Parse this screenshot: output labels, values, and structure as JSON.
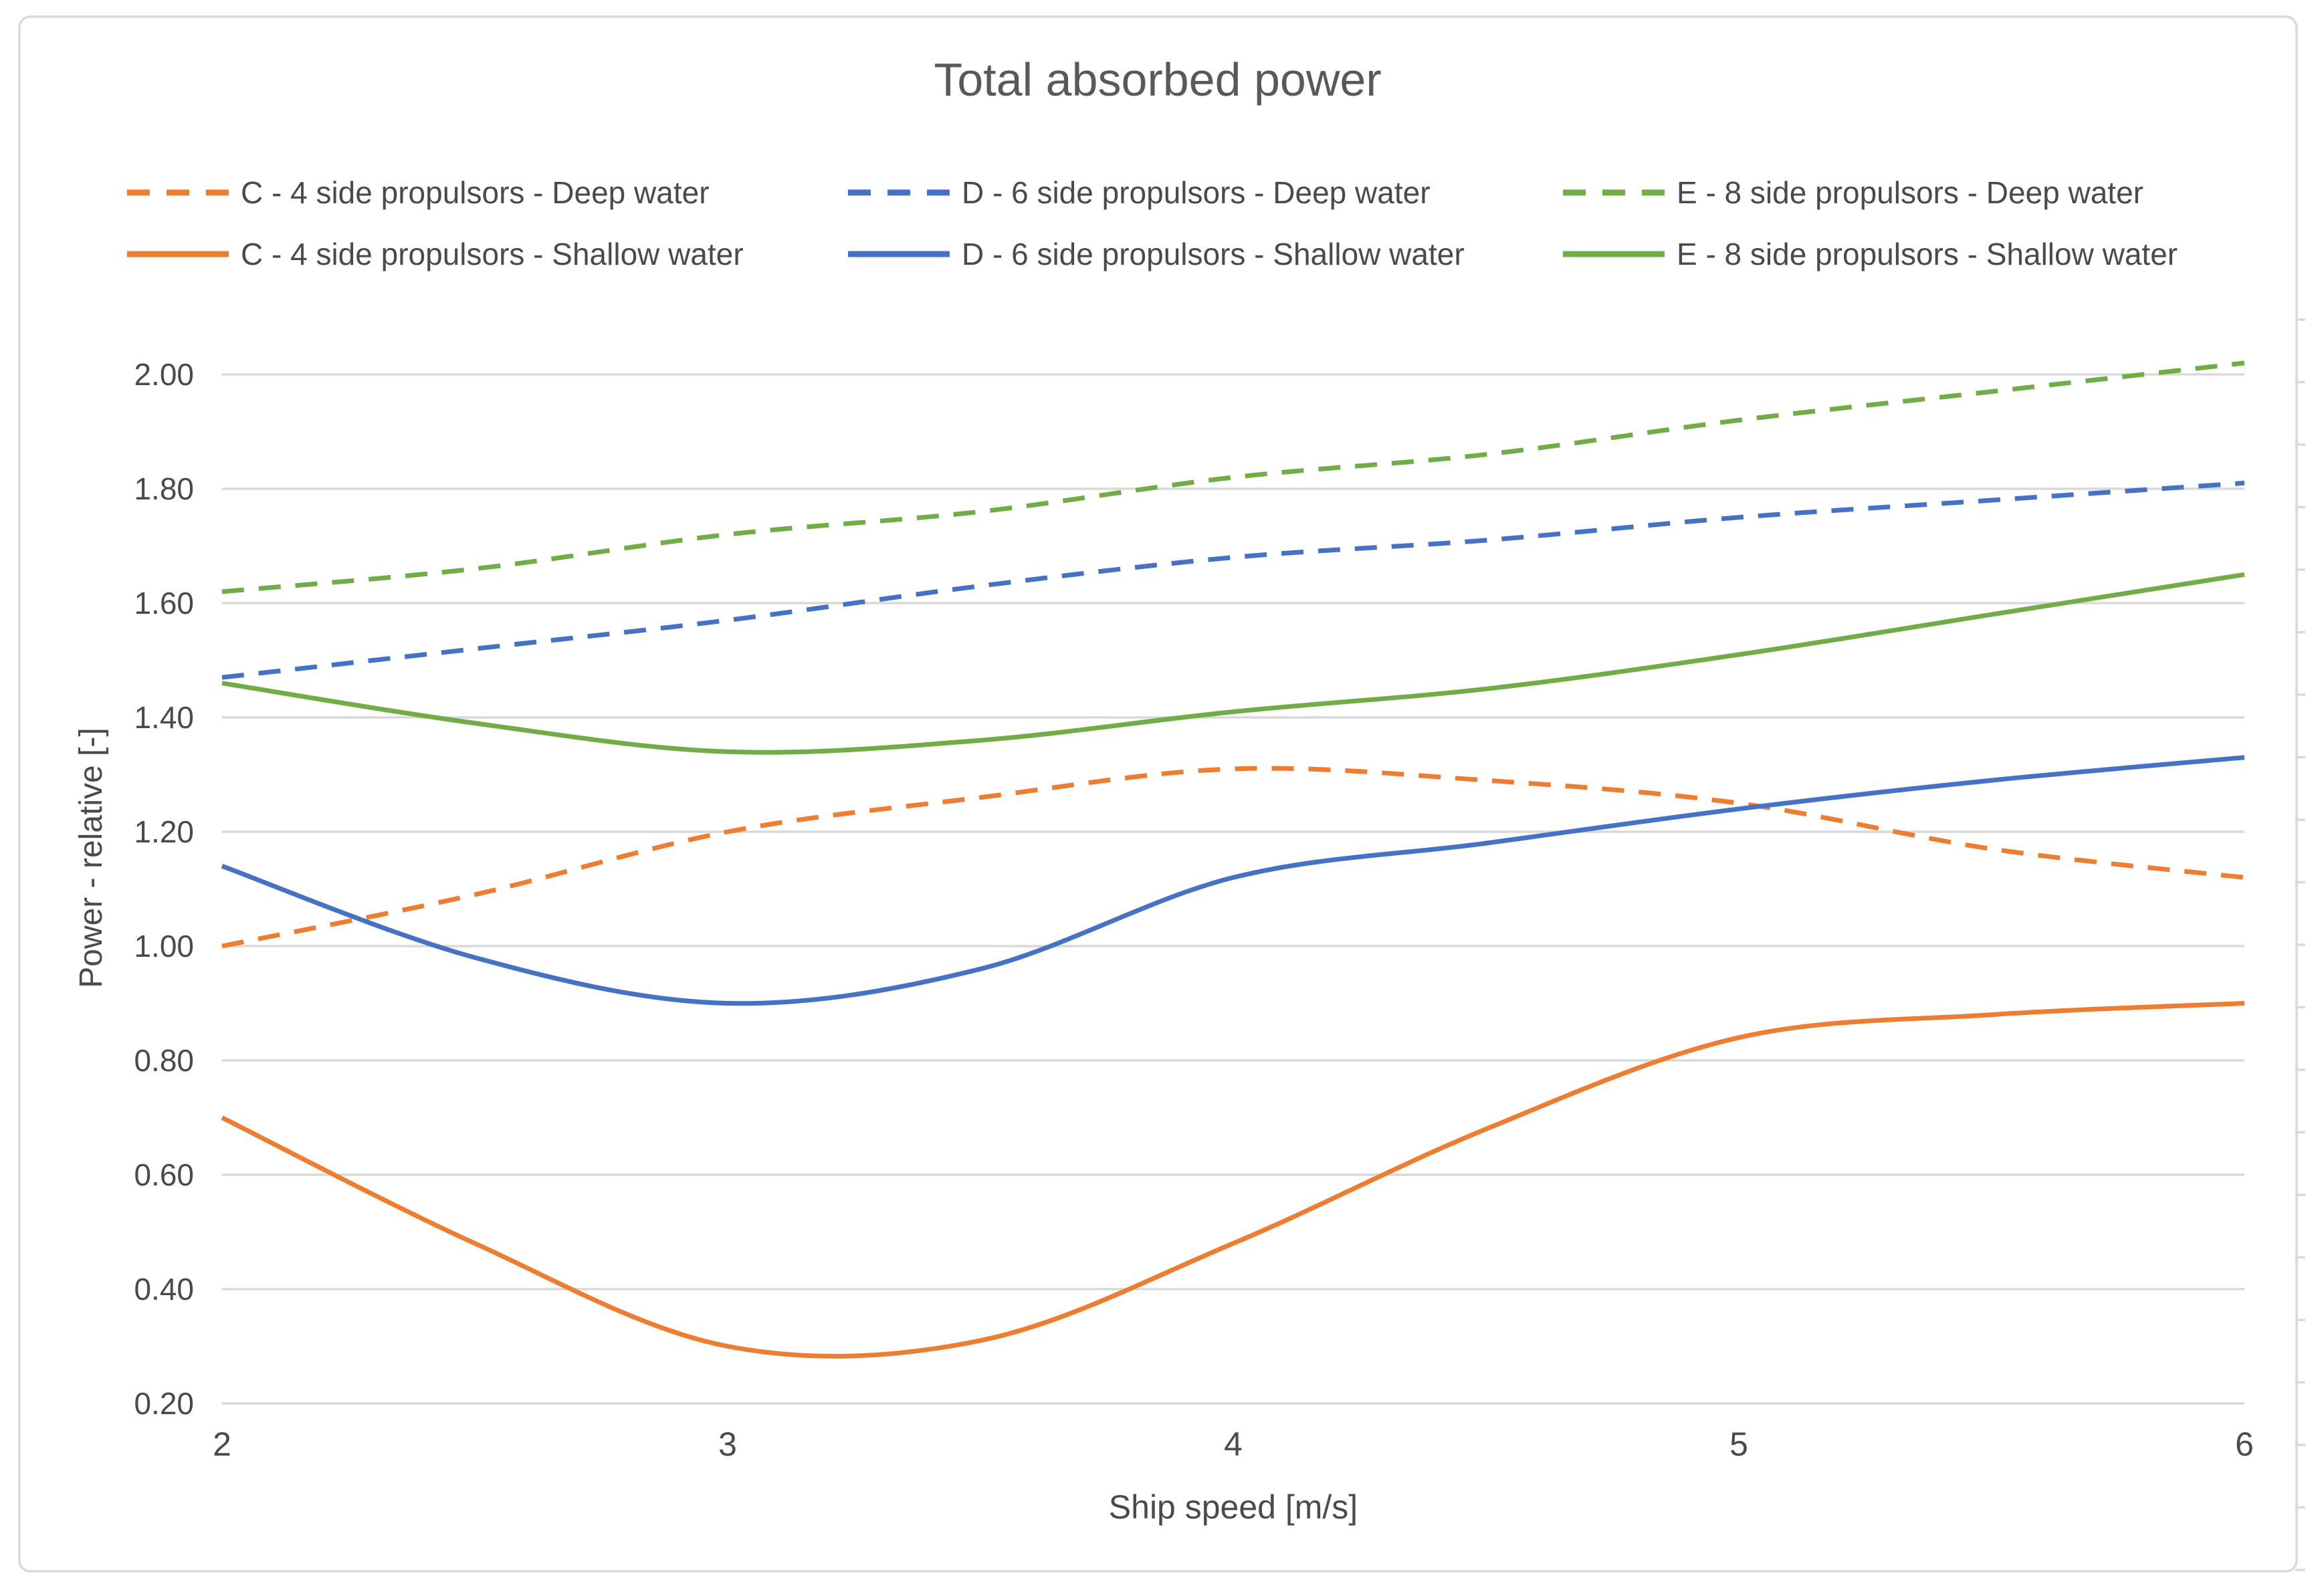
{
  "chart_data": {
    "type": "line",
    "title": "Total absorbed power",
    "xlabel": "Ship speed [m/s]",
    "ylabel": "Power - relative [-]",
    "xlim": [
      2,
      6
    ],
    "ylim": [
      0.2,
      2.0
    ],
    "x_tick_labels": [
      "2",
      "3",
      "4",
      "5",
      "6"
    ],
    "x_tick_values": [
      2,
      3,
      4,
      5,
      6
    ],
    "y_tick_labels": [
      "2.00",
      "1.80",
      "1.60",
      "1.40",
      "1.20",
      "1.00",
      "0.80",
      "0.60",
      "0.40",
      "0.20"
    ],
    "y_tick_values": [
      2.0,
      1.8,
      1.6,
      1.4,
      1.2,
      1.0,
      0.8,
      0.6,
      0.4,
      0.2
    ],
    "grid": "horizontal",
    "legend_position": "top",
    "x": [
      2,
      2.5,
      3,
      3.5,
      4,
      4.5,
      5,
      5.5,
      6
    ],
    "series": [
      {
        "name": "C - 4 side propulsors - Deep water",
        "color": "#ED7D31",
        "style": "dashed",
        "values": [
          1.0,
          1.09,
          1.2,
          1.26,
          1.31,
          1.29,
          1.25,
          1.17,
          1.12
        ]
      },
      {
        "name": "D - 6 side propulsors - Deep water",
        "color": "#4472C4",
        "style": "dashed",
        "values": [
          1.47,
          1.52,
          1.57,
          1.63,
          1.68,
          1.71,
          1.75,
          1.78,
          1.81
        ]
      },
      {
        "name": "E - 8 side propulsors - Deep water",
        "color": "#70AD47",
        "style": "dashed",
        "values": [
          1.62,
          1.66,
          1.72,
          1.76,
          1.82,
          1.86,
          1.92,
          1.97,
          2.02
        ]
      },
      {
        "name": "C - 4 side propulsors - Shallow water",
        "color": "#ED7D31",
        "style": "solid",
        "values": [
          0.7,
          0.48,
          0.3,
          0.31,
          0.48,
          0.68,
          0.84,
          0.88,
          0.9
        ]
      },
      {
        "name": "D - 6 side propulsors - Shallow water",
        "color": "#4472C4",
        "style": "solid",
        "values": [
          1.14,
          0.98,
          0.9,
          0.96,
          1.12,
          1.18,
          1.24,
          1.29,
          1.33
        ]
      },
      {
        "name": "E - 8 side propulsors - Shallow water",
        "color": "#70AD47",
        "style": "solid",
        "values": [
          1.46,
          1.39,
          1.34,
          1.36,
          1.41,
          1.45,
          1.51,
          1.58,
          1.65
        ]
      }
    ],
    "grid_color": "#D9D9D9",
    "title_color": "#595959",
    "label_color": "#4A4A4A"
  }
}
